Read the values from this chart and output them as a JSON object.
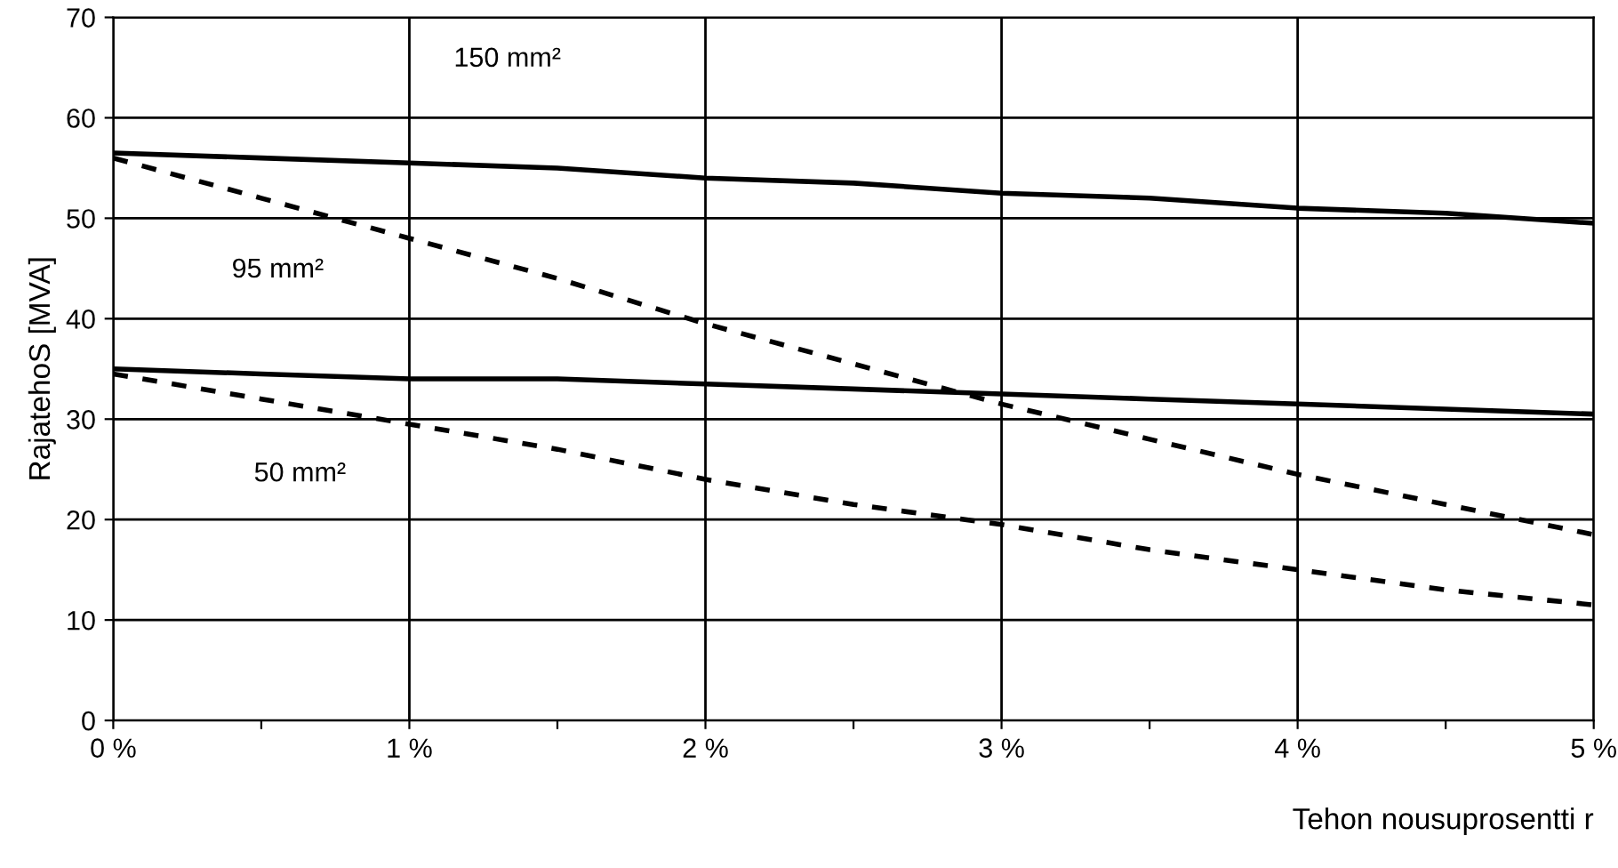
{
  "chart_data": {
    "type": "line",
    "xlabel": "Tehon nousuprosentti r",
    "ylabel": "RajatehoS [MVA]",
    "x": [
      0,
      0.5,
      1,
      1.5,
      2,
      2.5,
      3,
      3.5,
      4,
      4.5,
      5
    ],
    "series": [
      {
        "color": "#000000",
        "line_style": "solid",
        "values": [
          56.5,
          56,
          55.5,
          55,
          54,
          53.5,
          52.5,
          52,
          51,
          50.5,
          49.5
        ]
      },
      {
        "color": "#000000",
        "line_style": "dashed",
        "values": [
          56,
          52,
          48,
          44,
          39.5,
          35.5,
          31.5,
          28,
          24.5,
          21.5,
          18.5
        ]
      },
      {
        "color": "#000000",
        "line_style": "solid",
        "values": [
          35,
          34.5,
          34,
          34,
          33.5,
          33,
          32.5,
          32,
          31.5,
          31,
          30.5
        ]
      },
      {
        "color": "#000000",
        "line_style": "dashed",
        "values": [
          34.5,
          32,
          29.5,
          27,
          24,
          21.5,
          19.5,
          17,
          15,
          13,
          11.5
        ]
      }
    ],
    "annotations": [
      "150 mm²",
      "95 mm²",
      "50 mm²"
    ],
    "xlim": [
      0,
      5
    ],
    "ylim": [
      0,
      70
    ],
    "xticks": [
      {
        "value": 0,
        "label": "0 %"
      },
      {
        "value": 0.5,
        "label": null
      },
      {
        "value": 1,
        "label": "1 %"
      },
      {
        "value": 1.5,
        "label": null
      },
      {
        "value": 2,
        "label": "2 %"
      },
      {
        "value": 2.5,
        "label": null
      },
      {
        "value": 3,
        "label": "3 %"
      },
      {
        "value": 3.5,
        "label": null
      },
      {
        "value": 4,
        "label": "4 %"
      },
      {
        "value": 4.5,
        "label": null
      },
      {
        "value": 5,
        "label": "5 %"
      }
    ],
    "yticks": [
      0,
      10,
      20,
      30,
      40,
      50,
      60,
      70
    ],
    "grid": true,
    "marker": "none"
  }
}
